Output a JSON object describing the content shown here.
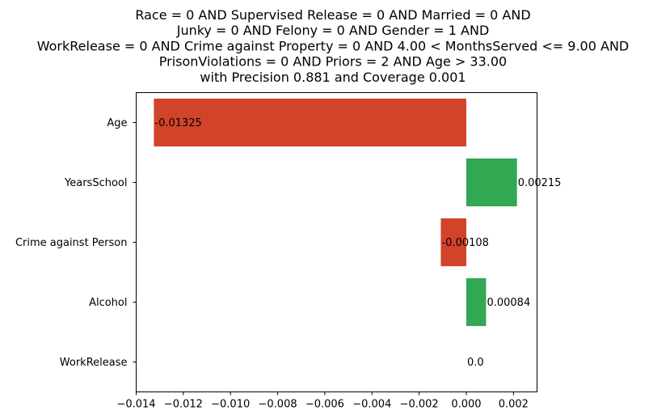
{
  "chart_data": {
    "type": "bar",
    "orientation": "horizontal",
    "title_lines": [
      "Race = 0 AND Supervised Release = 0 AND Married = 0 AND",
      "Junky = 0 AND Felony = 0 AND Gender = 1 AND",
      "WorkRelease = 0 AND Crime against Property = 0 AND 4.00 < MonthsServed <= 9.00 AND",
      "PrisonViolations = 0 AND Priors = 2 AND Age > 33.00",
      "with Precision 0.881 and Coverage 0.001"
    ],
    "categories": [
      "Age",
      "YearsSchool",
      "Crime against Person",
      "Alcohol",
      "WorkRelease"
    ],
    "values": [
      -0.01325,
      0.00215,
      -0.00108,
      0.00084,
      0.0
    ],
    "value_labels": [
      "-0.01325",
      "0.00215",
      "-0.00108",
      "0.00084",
      "0.0"
    ],
    "xlim": [
      -0.014,
      0.003
    ],
    "xticks": [
      -0.014,
      -0.012,
      -0.01,
      -0.008,
      -0.006,
      -0.004,
      -0.002,
      0.0,
      0.002
    ],
    "xtick_labels": [
      "−0.014",
      "−0.012",
      "−0.010",
      "−0.008",
      "−0.006",
      "−0.004",
      "−0.002",
      "0.000",
      "0.002"
    ],
    "xlabel": "",
    "ylabel": "",
    "grid": false,
    "colors": {
      "positive": "#33a853",
      "negative": "#d1442a"
    }
  }
}
